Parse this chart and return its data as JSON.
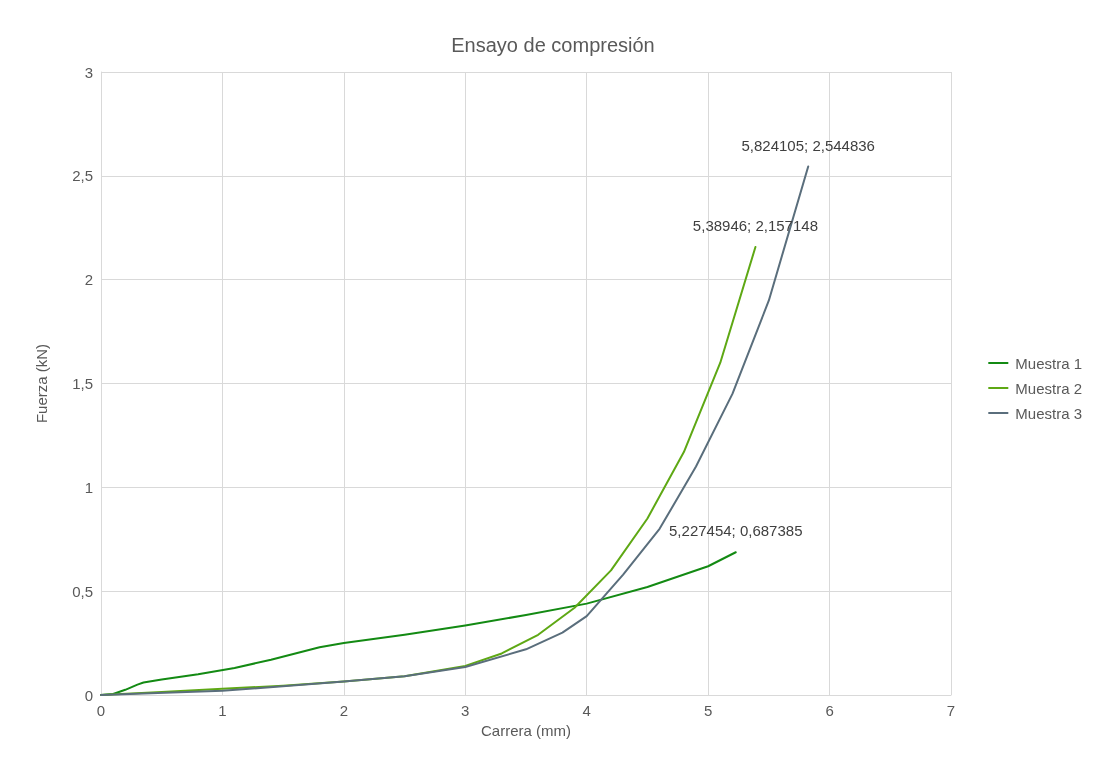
{
  "chart_data": {
    "type": "line",
    "title": "Ensayo de compresión",
    "xlabel": "Carrera (mm)",
    "ylabel": "Fuerza (kN)",
    "xlim": [
      0,
      7
    ],
    "xticks": [
      0,
      1,
      2,
      3,
      4,
      5,
      6,
      7
    ],
    "ylim": [
      0,
      3
    ],
    "yticks": [
      0,
      {
        "value": 0.5,
        "label": "0,5"
      },
      1,
      {
        "value": 1.5,
        "label": "1,5"
      },
      2,
      {
        "value": 2.5,
        "label": "2,5"
      },
      3
    ],
    "grid": true,
    "legend": "right",
    "marker": "none",
    "line_style": "solid",
    "series": [
      {
        "name": "Muestra 1",
        "color": "#138a13",
        "x": [
          0,
          0.1,
          0.2,
          0.3,
          0.35,
          0.5,
          0.8,
          1.1,
          1.4,
          1.8,
          2,
          2.5,
          3,
          3.5,
          4,
          4.5,
          5,
          5.227454
        ],
        "values": [
          0,
          0.005,
          0.025,
          0.05,
          0.06,
          0.075,
          0.1,
          0.13,
          0.17,
          0.23,
          0.25,
          0.29,
          0.335,
          0.385,
          0.44,
          0.52,
          0.62,
          0.687385
        ]
      },
      {
        "name": "Muestra 2",
        "color": "#5ea814",
        "x": [
          0,
          0.5,
          1,
          1.5,
          2,
          2.5,
          3,
          3.3,
          3.6,
          3.9,
          4.2,
          4.5,
          4.8,
          5.1,
          5.38946
        ],
        "values": [
          0,
          0.015,
          0.03,
          0.045,
          0.065,
          0.09,
          0.14,
          0.2,
          0.29,
          0.42,
          0.6,
          0.85,
          1.17,
          1.6,
          2.157148
        ]
      },
      {
        "name": "Muestra 3",
        "color": "#5a6e7c",
        "x": [
          0,
          1,
          2,
          2.5,
          3,
          3.5,
          3.8,
          4,
          4.3,
          4.6,
          4.9,
          5.2,
          5.5,
          5.824105
        ],
        "values": [
          0,
          0.02,
          0.065,
          0.09,
          0.135,
          0.22,
          0.3,
          0.38,
          0.58,
          0.8,
          1.1,
          1.45,
          1.9,
          2.544836
        ]
      }
    ],
    "annotations": [
      {
        "text": "5,227454; 0,687385",
        "x": 5.227454,
        "y": 0.687385
      },
      {
        "text": "5,38946; 2,157148",
        "x": 5.38946,
        "y": 2.157148
      },
      {
        "text": "5,824105; 2,544836",
        "x": 5.824105,
        "y": 2.544836
      }
    ]
  }
}
